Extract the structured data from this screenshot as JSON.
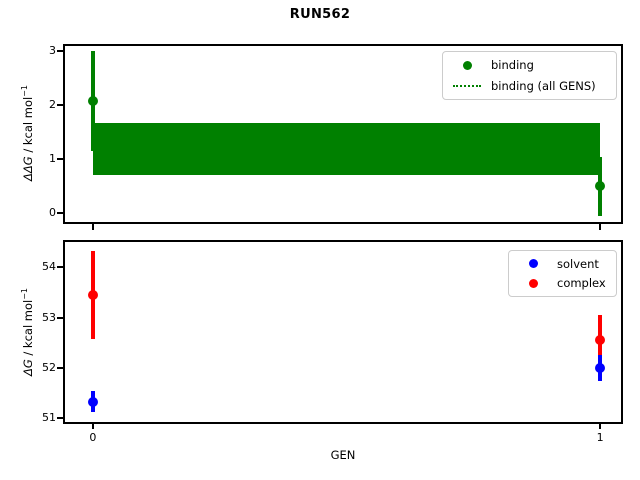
{
  "title": "RUN562",
  "xlabel": "GEN",
  "colors": {
    "binding": "#008000",
    "solvent": "#0000ff",
    "complex": "#ff0000",
    "axis": "#000000",
    "legend_border": "#cccccc"
  },
  "top_plot": {
    "ylabel": {
      "variable": "ΔΔG",
      "rest": " / kcal mol",
      "sup": "−1"
    },
    "yticks": [
      0,
      1,
      2,
      3
    ],
    "xticks": [
      0,
      1
    ],
    "legend": {
      "items": [
        {
          "label": "binding",
          "marker": "dot"
        },
        {
          "label": "binding (all GENS)",
          "marker": "dotted-line"
        }
      ]
    }
  },
  "bottom_plot": {
    "ylabel": {
      "variable": "ΔG",
      "rest": " / kcal mol",
      "sup": "−1"
    },
    "yticks": [
      51,
      52,
      53,
      54
    ],
    "xticks": [
      0,
      1
    ],
    "xtick_labels": [
      "0",
      "1"
    ],
    "legend": {
      "items": [
        {
          "label": "solvent",
          "marker": "dot"
        },
        {
          "label": "complex",
          "marker": "dot"
        }
      ]
    }
  },
  "chart_data": [
    {
      "type": "scatter",
      "subplot": "top",
      "title": "RUN562",
      "xlabel": "GEN",
      "ylabel": "ΔΔG / kcal mol⁻¹",
      "xlim": [
        -0.057,
        1.043
      ],
      "ylim": [
        -0.18,
        3.12
      ],
      "grid": false,
      "legend_position": "upper right",
      "series": [
        {
          "name": "binding",
          "color": "#008000",
          "marker": "o",
          "x": [
            0,
            1
          ],
          "y": [
            2.08,
            0.5
          ],
          "yerr": [
            0.92,
            0.55
          ]
        },
        {
          "name": "binding (all GENS)",
          "color": "#008000",
          "style": "dotted",
          "value": 1.19,
          "band_low": 0.71,
          "band_high": 1.67,
          "band_x": [
            0,
            1
          ]
        }
      ]
    },
    {
      "type": "scatter",
      "subplot": "bottom",
      "xlabel": "GEN",
      "ylabel": "ΔG / kcal mol⁻¹",
      "xlim": [
        -0.057,
        1.043
      ],
      "ylim": [
        50.93,
        54.52
      ],
      "grid": false,
      "legend_position": "upper right",
      "series": [
        {
          "name": "complex",
          "color": "#ff0000",
          "marker": "o",
          "x": [
            0,
            1
          ],
          "y": [
            53.45,
            52.55
          ],
          "yerr": [
            0.88,
            0.51
          ]
        },
        {
          "name": "solvent",
          "color": "#0000ff",
          "marker": "o",
          "x": [
            0,
            1
          ],
          "y": [
            51.33,
            52.0
          ],
          "yerr": [
            0.21,
            0.25
          ]
        }
      ]
    }
  ]
}
